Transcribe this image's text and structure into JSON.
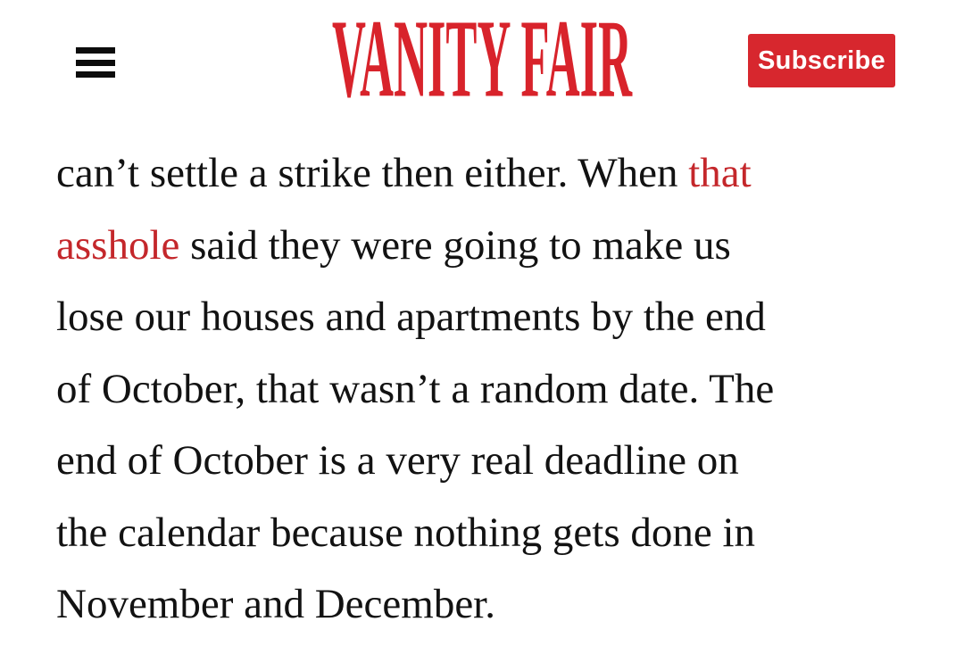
{
  "header": {
    "menu_icon": "hamburger-menu",
    "logo_text": "VANITY FAIR",
    "subscribe_label": "Subscribe"
  },
  "colors": {
    "brand_red": "#d8232b",
    "button_red": "#d7272e",
    "link_red": "#c4272b",
    "text_black": "#121212",
    "background": "#ffffff"
  },
  "article": {
    "lines": [
      {
        "pre": "can’t settle a strike then either. When ",
        "link": "that",
        "post": ""
      },
      {
        "pre": "",
        "link": "asshole",
        "post": " said they were going to make us"
      },
      {
        "pre": "lose our houses and apartments by the end",
        "link": "",
        "post": ""
      },
      {
        "pre": "of October, that wasn’t a random date. The",
        "link": "",
        "post": ""
      },
      {
        "pre": "end of October is a very real deadline on",
        "link": "",
        "post": ""
      },
      {
        "pre": "the calendar because nothing gets done in",
        "link": "",
        "post": ""
      },
      {
        "pre": "November and December.",
        "link": "",
        "post": ""
      }
    ]
  }
}
